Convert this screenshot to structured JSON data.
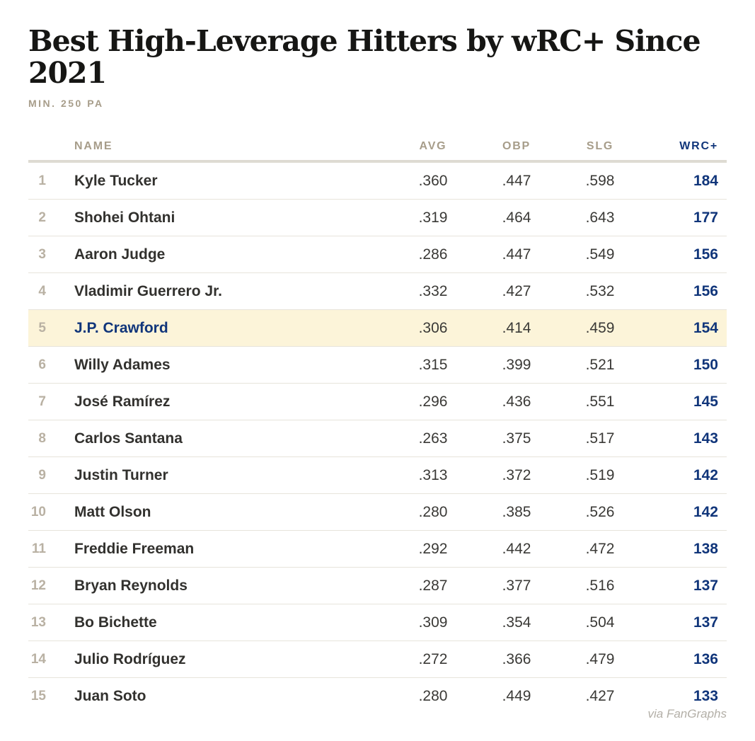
{
  "title": "Best High-Leverage Hitters by wRC+ Since 2021",
  "subtitle": "MIN. 250 PA",
  "attribution": "via FanGraphs",
  "colors": {
    "accent_navy": "#10357a",
    "header_tan": "#a79d8a",
    "rank_tan": "#b9b1a3",
    "highlight_row_bg": "#fcf4d9",
    "divider": "#e7e4db",
    "header_divider": "#dedbd2",
    "text_dark": "#32312e"
  },
  "table": {
    "headers": {
      "name": "NAME",
      "avg": "AVG",
      "obp": "OBP",
      "slg": "SLG",
      "wrc": "WRC+"
    },
    "rows": [
      {
        "rank": "1",
        "name": "Kyle Tucker",
        "avg": ".360",
        "obp": ".447",
        "slg": ".598",
        "wrc": "184",
        "highlight": false
      },
      {
        "rank": "2",
        "name": "Shohei Ohtani",
        "avg": ".319",
        "obp": ".464",
        "slg": ".643",
        "wrc": "177",
        "highlight": false
      },
      {
        "rank": "3",
        "name": "Aaron Judge",
        "avg": ".286",
        "obp": ".447",
        "slg": ".549",
        "wrc": "156",
        "highlight": false
      },
      {
        "rank": "4",
        "name": "Vladimir Guerrero Jr.",
        "avg": ".332",
        "obp": ".427",
        "slg": ".532",
        "wrc": "156",
        "highlight": false
      },
      {
        "rank": "5",
        "name": "J.P. Crawford",
        "avg": ".306",
        "obp": ".414",
        "slg": ".459",
        "wrc": "154",
        "highlight": true
      },
      {
        "rank": "6",
        "name": "Willy Adames",
        "avg": ".315",
        "obp": ".399",
        "slg": ".521",
        "wrc": "150",
        "highlight": false
      },
      {
        "rank": "7",
        "name": "José Ramírez",
        "avg": ".296",
        "obp": ".436",
        "slg": ".551",
        "wrc": "145",
        "highlight": false
      },
      {
        "rank": "8",
        "name": "Carlos Santana",
        "avg": ".263",
        "obp": ".375",
        "slg": ".517",
        "wrc": "143",
        "highlight": false
      },
      {
        "rank": "9",
        "name": "Justin Turner",
        "avg": ".313",
        "obp": ".372",
        "slg": ".519",
        "wrc": "142",
        "highlight": false
      },
      {
        "rank": "10",
        "name": "Matt Olson",
        "avg": ".280",
        "obp": ".385",
        "slg": ".526",
        "wrc": "142",
        "highlight": false
      },
      {
        "rank": "11",
        "name": "Freddie Freeman",
        "avg": ".292",
        "obp": ".442",
        "slg": ".472",
        "wrc": "138",
        "highlight": false
      },
      {
        "rank": "12",
        "name": "Bryan Reynolds",
        "avg": ".287",
        "obp": ".377",
        "slg": ".516",
        "wrc": "137",
        "highlight": false
      },
      {
        "rank": "13",
        "name": "Bo Bichette",
        "avg": ".309",
        "obp": ".354",
        "slg": ".504",
        "wrc": "137",
        "highlight": false
      },
      {
        "rank": "14",
        "name": "Julio Rodríguez",
        "avg": ".272",
        "obp": ".366",
        "slg": ".479",
        "wrc": "136",
        "highlight": false
      },
      {
        "rank": "15",
        "name": "Juan Soto",
        "avg": ".280",
        "obp": ".449",
        "slg": ".427",
        "wrc": "133",
        "highlight": false
      }
    ]
  },
  "chart_data": {
    "type": "table",
    "title": "Best High-Leverage Hitters by wRC+ Since 2021",
    "subtitle": "MIN. 250 PA",
    "columns": [
      "Rank",
      "NAME",
      "AVG",
      "OBP",
      "SLG",
      "WRC+"
    ],
    "rows": [
      [
        1,
        "Kyle Tucker",
        0.36,
        0.447,
        0.598,
        184
      ],
      [
        2,
        "Shohei Ohtani",
        0.319,
        0.464,
        0.643,
        177
      ],
      [
        3,
        "Aaron Judge",
        0.286,
        0.447,
        0.549,
        156
      ],
      [
        4,
        "Vladimir Guerrero Jr.",
        0.332,
        0.427,
        0.532,
        156
      ],
      [
        5,
        "J.P. Crawford",
        0.306,
        0.414,
        0.459,
        154
      ],
      [
        6,
        "Willy Adames",
        0.315,
        0.399,
        0.521,
        150
      ],
      [
        7,
        "José Ramírez",
        0.296,
        0.436,
        0.551,
        145
      ],
      [
        8,
        "Carlos Santana",
        0.263,
        0.375,
        0.517,
        143
      ],
      [
        9,
        "Justin Turner",
        0.313,
        0.372,
        0.519,
        142
      ],
      [
        10,
        "Matt Olson",
        0.28,
        0.385,
        0.526,
        142
      ],
      [
        11,
        "Freddie Freeman",
        0.292,
        0.442,
        0.472,
        138
      ],
      [
        12,
        "Bryan Reynolds",
        0.287,
        0.377,
        0.516,
        137
      ],
      [
        13,
        "Bo Bichette",
        0.309,
        0.354,
        0.504,
        137
      ],
      [
        14,
        "Julio Rodríguez",
        0.272,
        0.366,
        0.479,
        136
      ],
      [
        15,
        "Juan Soto",
        0.28,
        0.449,
        0.427,
        133
      ]
    ],
    "highlighted_row": "J.P. Crawford",
    "annotations": [
      "via FanGraphs"
    ]
  }
}
